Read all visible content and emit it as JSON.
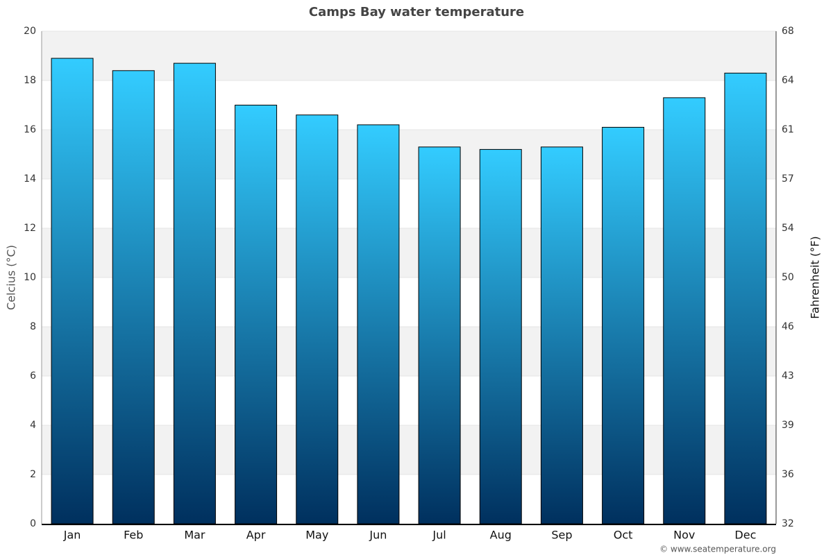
{
  "chart_data": {
    "type": "bar",
    "title": "Camps Bay water temperature",
    "y_label": "Celcius (°C)",
    "y2_label": "Fahrenheit (°F)",
    "categories": [
      "Jan",
      "Feb",
      "Mar",
      "Apr",
      "May",
      "Jun",
      "Jul",
      "Aug",
      "Sep",
      "Oct",
      "Nov",
      "Dec"
    ],
    "values": [
      18.9,
      18.4,
      18.7,
      17.0,
      16.6,
      16.2,
      15.3,
      15.2,
      15.3,
      16.1,
      17.3,
      18.3
    ],
    "gradient": [
      "#33ccff",
      "#00305e"
    ],
    "ylim": [
      0,
      20
    ],
    "yticks": [
      0,
      2,
      4,
      6,
      8,
      10,
      12,
      14,
      16,
      18,
      20
    ],
    "y2lim": [
      32,
      68
    ],
    "y2ticks": [
      32,
      {
        "value": 35.6,
        "label": "36"
      },
      {
        "value": 39.2,
        "label": "39"
      },
      {
        "value": 42.8,
        "label": "43"
      },
      {
        "value": 46.4,
        "label": "46"
      },
      50,
      {
        "value": 53.6,
        "label": "54"
      },
      {
        "value": 57.2,
        "label": "57"
      },
      {
        "value": 60.8,
        "label": "61"
      },
      {
        "value": 64.4,
        "label": "64"
      },
      68
    ],
    "grid": true,
    "credit": "© www.seatemperature.org"
  }
}
